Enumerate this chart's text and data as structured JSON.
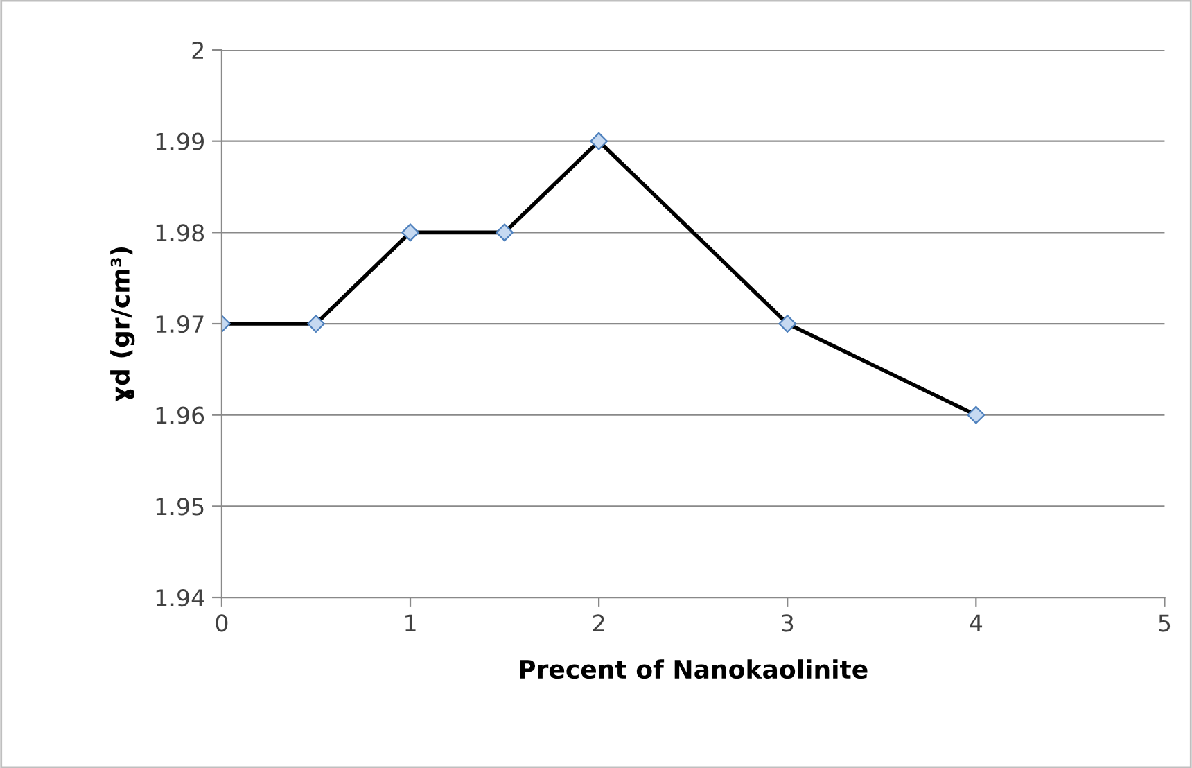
{
  "chart_data": {
    "type": "line",
    "xlabel": "Precent of Nanokaolinite",
    "ylabel": "ɣd (gr/cm³)",
    "x": [
      0,
      0.5,
      1,
      1.5,
      2,
      3,
      4
    ],
    "series": [
      {
        "color": "#000000",
        "values": [
          1.97,
          1.97,
          1.98,
          1.98,
          1.99,
          1.97,
          1.96
        ]
      }
    ],
    "xlim": [
      0,
      5
    ],
    "xticks": [
      0,
      1,
      2,
      3,
      4,
      5
    ],
    "ylim": [
      1.94,
      2
    ],
    "yticks": [
      {
        "value": 1.94,
        "label": "1.94"
      },
      {
        "value": 1.95,
        "label": "1.95"
      },
      {
        "value": 1.96,
        "label": "1.96"
      },
      {
        "value": 1.97,
        "label": "1.97"
      },
      {
        "value": 1.98,
        "label": "1.98"
      },
      {
        "value": 1.99,
        "label": "1.99"
      },
      {
        "value": 2,
        "label": "2"
      }
    ],
    "grid": "y",
    "marker": "diamond",
    "line_style": "solid"
  }
}
